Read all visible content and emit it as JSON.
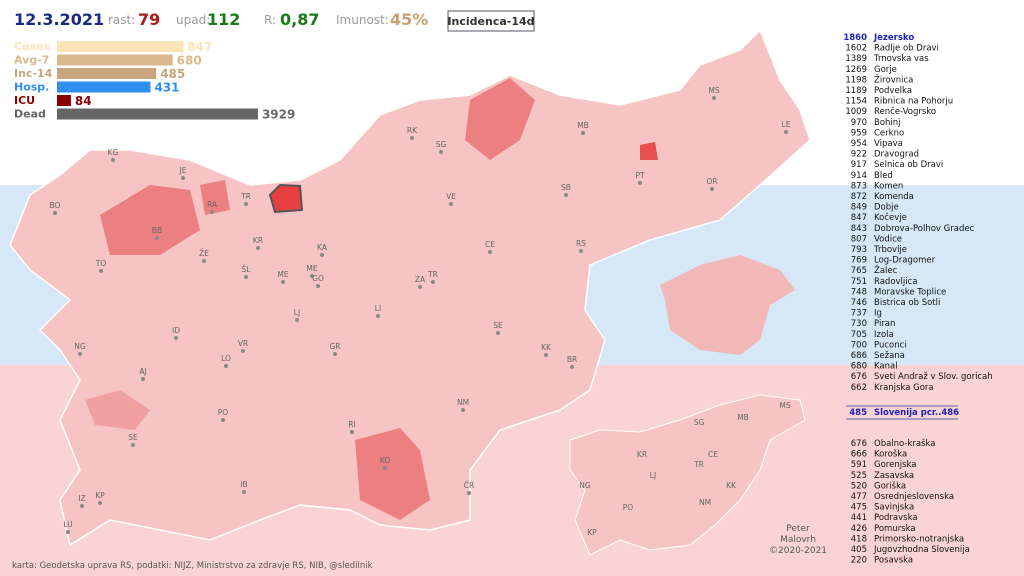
{
  "header": {
    "date": "12.3.2021",
    "growth_label": "rast:",
    "growth": 79,
    "decline_label": "upad:",
    "decline": 112,
    "r_label": "R:",
    "r": "0,87",
    "immunity_label": "Imunost:",
    "immunity": "45%",
    "button": "Incidenca-14d"
  },
  "stats": [
    {
      "label": "Cases",
      "value": 847,
      "color": "#fde3b8"
    },
    {
      "label": "Avg-7",
      "value": 680,
      "color": "#d9b98c"
    },
    {
      "label": "Inc-14",
      "value": 485,
      "color": "#c8a67d"
    },
    {
      "label": "Hosp.",
      "value": 431,
      "color": "#2f8ff0"
    },
    {
      "label": "ICU",
      "value": 84,
      "color": "#8b0000"
    },
    {
      "label": "Dead",
      "value": 3929,
      "color": "#666666"
    }
  ],
  "ranking": [
    {
      "value": 1860,
      "name": "Jezersko"
    },
    {
      "value": 1602,
      "name": "Radlje ob Dravi"
    },
    {
      "value": 1389,
      "name": "Trnovska vas"
    },
    {
      "value": 1269,
      "name": "Gorje"
    },
    {
      "value": 1198,
      "name": "Žirovnica"
    },
    {
      "value": 1189,
      "name": "Podvelka"
    },
    {
      "value": 1154,
      "name": "Ribnica na Pohorju"
    },
    {
      "value": 1009,
      "name": "Renče-Vogrsko"
    },
    {
      "value": 970,
      "name": "Bohinj"
    },
    {
      "value": 959,
      "name": "Cerkno"
    },
    {
      "value": 954,
      "name": "Vipava"
    },
    {
      "value": 922,
      "name": "Dravograd"
    },
    {
      "value": 917,
      "name": "Selnica ob Dravi"
    },
    {
      "value": 914,
      "name": "Bled"
    },
    {
      "value": 873,
      "name": "Komen"
    },
    {
      "value": 872,
      "name": "Komenda"
    },
    {
      "value": 849,
      "name": "Dobje"
    },
    {
      "value": 847,
      "name": "Kočevje"
    },
    {
      "value": 843,
      "name": "Dobrova-Polhov Gradec"
    },
    {
      "value": 807,
      "name": "Vodice"
    },
    {
      "value": 793,
      "name": "Trbovlje"
    },
    {
      "value": 769,
      "name": "Log-Dragomer"
    },
    {
      "value": 765,
      "name": "Žalec"
    },
    {
      "value": 751,
      "name": "Radovljica"
    },
    {
      "value": 748,
      "name": "Moravske Toplice"
    },
    {
      "value": 746,
      "name": "Bistrica ob Sotli"
    },
    {
      "value": 737,
      "name": "Ig"
    },
    {
      "value": 730,
      "name": "Piran"
    },
    {
      "value": 705,
      "name": "Izola"
    },
    {
      "value": 700,
      "name": "Puconci"
    },
    {
      "value": 686,
      "name": "Sežana"
    },
    {
      "value": 680,
      "name": "Kanal"
    },
    {
      "value": 676,
      "name": "Sveti Andraž v Slov. goricah"
    },
    {
      "value": 662,
      "name": "Kranjska Gora"
    }
  ],
  "national": {
    "value": 485,
    "name": "Slovenija pcr..486"
  },
  "regions": [
    {
      "value": 676,
      "name": "Obalno-kraška"
    },
    {
      "value": 666,
      "name": "Koroška"
    },
    {
      "value": 591,
      "name": "Gorenjska"
    },
    {
      "value": 525,
      "name": "Zasavska"
    },
    {
      "value": 520,
      "name": "Goriška"
    },
    {
      "value": 477,
      "name": "Osrednjeslovenska"
    },
    {
      "value": 475,
      "name": "Savinjska"
    },
    {
      "value": 441,
      "name": "Podravska"
    },
    {
      "value": 426,
      "name": "Pomurska"
    },
    {
      "value": 418,
      "name": "Primorsko-notranjska"
    },
    {
      "value": 405,
      "name": "Jugovzhodna Slovenija"
    },
    {
      "value": 220,
      "name": "Posavska"
    }
  ],
  "map_labels": [
    "KG",
    "JE",
    "BO",
    "RA",
    "TR",
    "BB",
    "KR",
    "ŽE",
    "TO",
    "ŠL",
    "ME",
    "ME",
    "GO",
    "KA",
    "VE",
    "CE",
    "RS",
    "SB",
    "SG",
    "RK",
    "MB",
    "PT",
    "OR",
    "MS",
    "LE",
    "ZA",
    "TR",
    "LJ",
    "LI",
    "SE",
    "KK",
    "BR",
    "ID",
    "VR",
    "LO",
    "NG",
    "GR",
    "AJ",
    "PO",
    "NM",
    "RI",
    "SE",
    "KO",
    "ČR",
    "IB",
    "KP",
    "IZ",
    "LU"
  ],
  "inset_labels": [
    "SG",
    "MB",
    "MS",
    "KR",
    "CE",
    "TR",
    "LJ",
    "NG",
    "PO",
    "NM",
    "KK",
    "KP"
  ],
  "author": [
    "Peter",
    "Malovrh",
    "©2020-2021"
  ],
  "footer": "karta: Geodetska uprava RS,  podatki: NIJZ, Ministrstvo za zdravje RS, NIB, @sledilnik"
}
